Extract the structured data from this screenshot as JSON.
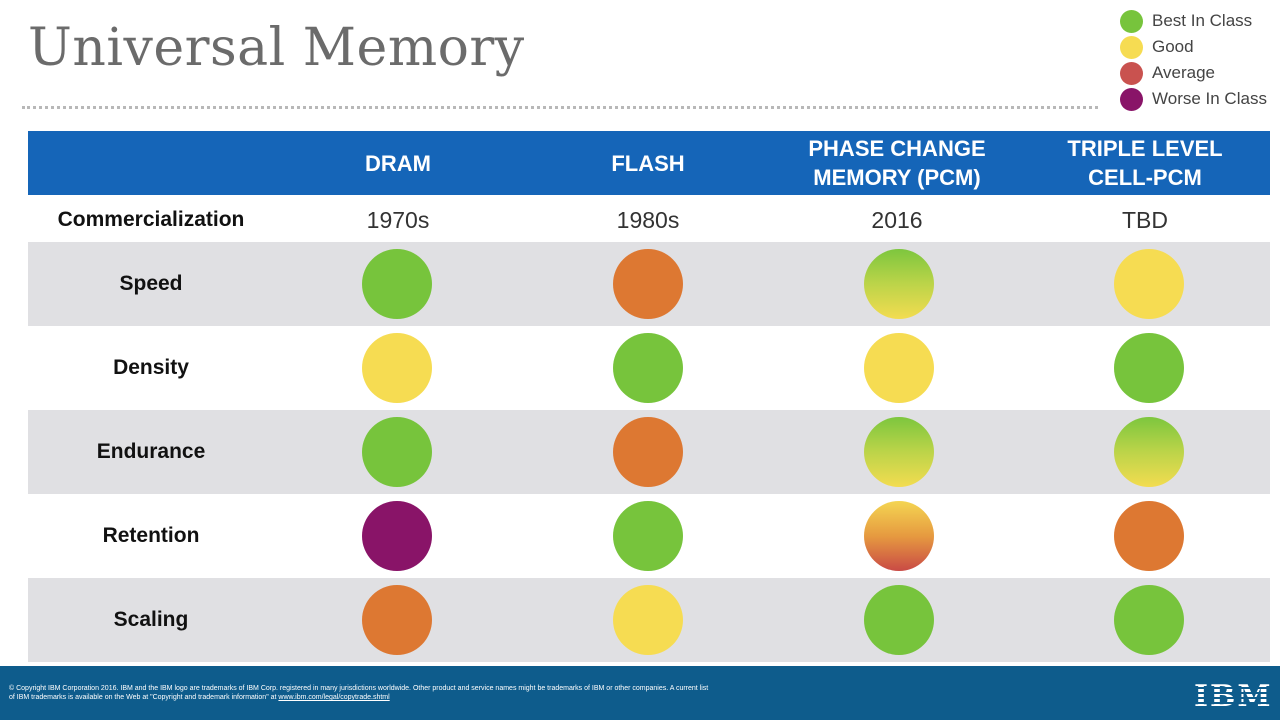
{
  "title": "Universal Memory",
  "legend": [
    {
      "label": "Best In Class",
      "color": "#77c43c"
    },
    {
      "label": "Good",
      "color": "#f6dc52"
    },
    {
      "label": "Average",
      "color": "#c9524f"
    },
    {
      "label": "Worse In Class",
      "color": "#891468"
    }
  ],
  "columns": [
    "DRAM",
    "FLASH",
    "PHASE CHANGE\nMEMORY (PCM)",
    "TRIPLE LEVEL\nCELL-PCM"
  ],
  "commercialization": {
    "label": "Commercialization",
    "values": [
      "1970s",
      "1980s",
      "2016",
      "TBD"
    ]
  },
  "rows": [
    {
      "label": "Speed",
      "ratings": [
        "green",
        "orange",
        "green-yellow",
        "yellow"
      ]
    },
    {
      "label": "Density",
      "ratings": [
        "yellow",
        "green",
        "yellow",
        "green"
      ]
    },
    {
      "label": "Endurance",
      "ratings": [
        "green",
        "orange",
        "green-yellow",
        "green-yellow"
      ]
    },
    {
      "label": "Retention",
      "ratings": [
        "purple",
        "green",
        "yellow-red",
        "orange"
      ]
    },
    {
      "label": "Scaling",
      "ratings": [
        "orange",
        "yellow",
        "green",
        "green"
      ]
    }
  ],
  "footer": {
    "copyright": "© Copyright IBM Corporation 2016. IBM and the IBM logo are trademarks of IBM Corp. registered in many jurisdictions worldwide. Other product and service names might be trademarks of IBM or other companies. A current list of IBM trademarks is available on the Web at \"Copyright and trademark information\" at ",
    "link": "www.ibm.com/legal/copytrade.shtml",
    "logo": "IBM"
  }
}
